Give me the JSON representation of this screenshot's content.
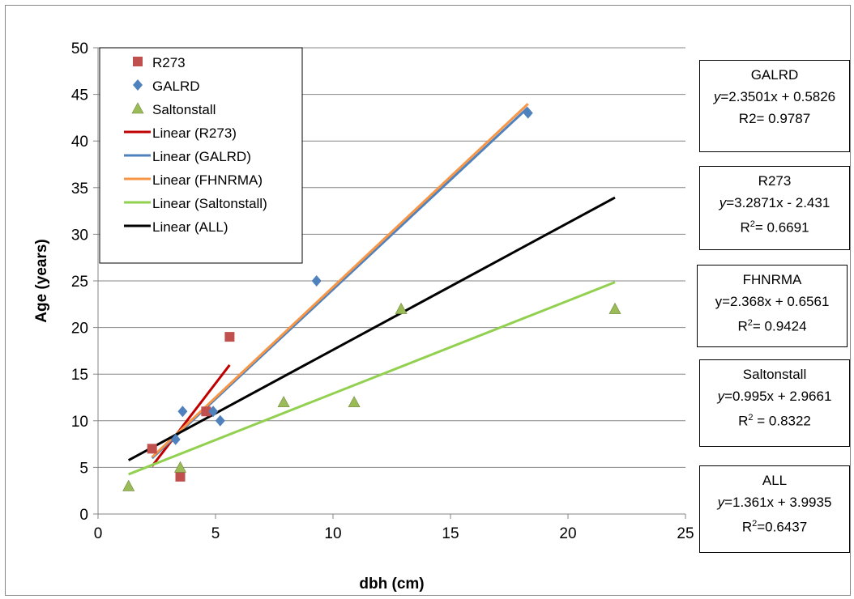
{
  "chart_data": {
    "type": "scatter",
    "xlabel": "dbh (cm)",
    "ylabel": "Age (years)",
    "xlim": [
      0,
      25
    ],
    "ylim": [
      0,
      50
    ],
    "x_ticks": [
      "0",
      "5",
      "10",
      "15",
      "20",
      "25"
    ],
    "y_ticks": [
      "0",
      "5",
      "10",
      "15",
      "20",
      "25",
      "30",
      "35",
      "40",
      "45",
      "50"
    ],
    "grid": "horizontal",
    "legend_position": "top-left",
    "series": [
      {
        "name": "R273",
        "marker": "square",
        "color": "#c0504d",
        "points": [
          [
            2.3,
            7
          ],
          [
            3.5,
            4
          ],
          [
            4.6,
            11
          ],
          [
            5.6,
            19
          ]
        ]
      },
      {
        "name": "GALRD",
        "marker": "diamond",
        "color": "#4f81bd",
        "points": [
          [
            3.3,
            8
          ],
          [
            3.6,
            11
          ],
          [
            4.9,
            11
          ],
          [
            5.2,
            10
          ],
          [
            9.3,
            25
          ],
          [
            18.3,
            43
          ]
        ]
      },
      {
        "name": "Saltonstall",
        "marker": "triangle",
        "color": "#9bbb59",
        "points": [
          [
            1.3,
            3
          ],
          [
            3.5,
            5
          ],
          [
            7.9,
            12
          ],
          [
            10.9,
            12
          ],
          [
            12.9,
            22
          ],
          [
            22,
            22
          ]
        ]
      }
    ],
    "trendlines": [
      {
        "name": "Linear (R273)",
        "color": "#c00000",
        "x": [
          2.3,
          5.6
        ]
      },
      {
        "name": "Linear (GALRD)",
        "color": "#4f81bd",
        "x": [
          2.3,
          18.3
        ]
      },
      {
        "name": "Linear (FHNRMA)",
        "color": "#f79646",
        "x": [
          2.3,
          18.3
        ]
      },
      {
        "name": "Linear (Saltonstall)",
        "color": "#92d050",
        "x": [
          1.3,
          22
        ]
      },
      {
        "name": "Linear (ALL)",
        "color": "#000000",
        "x": [
          1.3,
          22
        ]
      }
    ],
    "equation_boxes": [
      {
        "title": "GALRD",
        "eq_y": "y",
        "eq_rest": "=2.3501x + 0.5826",
        "eq_x_italic": true,
        "r2_label": "R2= 0.9787",
        "slope": 2.3501,
        "intercept": 0.5826
      },
      {
        "title": "R273",
        "eq_y": "y",
        "eq_rest": "=3.2871x - 2.431",
        "eq_x_italic": false,
        "r2_label": "R",
        "r2_sup": "2",
        "r2_value": "=  0.6691",
        "slope": 3.2871,
        "intercept": -2.431
      },
      {
        "title": "FHNRMA",
        "eq_y": "",
        "eq_rest": "y=2.368x + 0.6561",
        "eq_x_italic": false,
        "r2_label": "R",
        "r2_sup": "2",
        "r2_value": "= 0.9424",
        "slope": 2.368,
        "intercept": 0.6561
      },
      {
        "title": "Saltonstall",
        "eq_y": "y",
        "eq_rest": "=0.995x + 2.9661",
        "eq_x_italic": false,
        "r2_label": "R",
        "r2_sup": "2",
        "r2_value": " = 0.8322",
        "slope": 0.995,
        "intercept": 2.9661
      },
      {
        "title": "ALL",
        "eq_y": "y",
        "eq_rest": "=1.361x + 3.9935",
        "eq_x_italic": false,
        "r2_label": "R",
        "r2_sup": "2",
        "r2_value": "=0.6437",
        "slope": 1.361,
        "intercept": 3.9935
      }
    ]
  }
}
